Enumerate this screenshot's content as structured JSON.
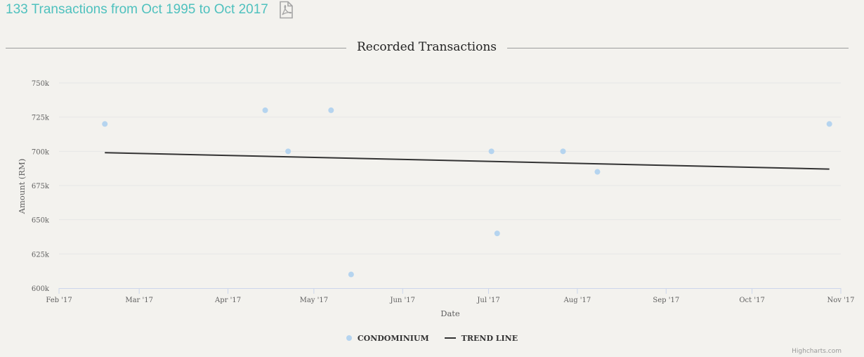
{
  "header": {
    "title": "133 Transactions from Oct 1995 to Oct 2017",
    "pdf_icon": "pdf-file-icon"
  },
  "section": {
    "title": "Recorded Transactions"
  },
  "colors": {
    "title": "#4fc1be",
    "scatter": "#b5d4ef",
    "trend": "#333333",
    "grid": "#e6e6e6",
    "axis": "#ccd6eb"
  },
  "chart_data": {
    "type": "scatter",
    "title": "Recorded Transactions",
    "xlabel": "Date",
    "ylabel": "Amount (RM)",
    "x_type": "date",
    "xlim": [
      "2017-02-01",
      "2017-11-01"
    ],
    "ylim": [
      600000,
      750000
    ],
    "x_ticks": [
      "Feb '17",
      "Mar '17",
      "Apr '17",
      "May '17",
      "Jun '17",
      "Jul '17",
      "Aug '17",
      "Sep '17",
      "Oct '17",
      "Nov '17"
    ],
    "y_ticks": [
      "600k",
      "625k",
      "650k",
      "675k",
      "700k",
      "725k",
      "750k"
    ],
    "grid": true,
    "legend_position": "bottom-center",
    "series": [
      {
        "name": "CONDOMINIUM",
        "type": "scatter",
        "points": [
          {
            "x": "2017-02-17",
            "y": 720000
          },
          {
            "x": "2017-04-14",
            "y": 730000
          },
          {
            "x": "2017-04-22",
            "y": 700000
          },
          {
            "x": "2017-05-07",
            "y": 730000
          },
          {
            "x": "2017-05-14",
            "y": 610000
          },
          {
            "x": "2017-07-02",
            "y": 700000
          },
          {
            "x": "2017-07-04",
            "y": 640000
          },
          {
            "x": "2017-07-27",
            "y": 700000
          },
          {
            "x": "2017-08-08",
            "y": 685000
          },
          {
            "x": "2017-10-28",
            "y": 720000
          }
        ]
      },
      {
        "name": "TREND LINE",
        "type": "line",
        "points": [
          {
            "x": "2017-02-17",
            "y": 699000
          },
          {
            "x": "2017-10-28",
            "y": 687000
          }
        ]
      }
    ]
  },
  "credits": "Highcharts.com"
}
